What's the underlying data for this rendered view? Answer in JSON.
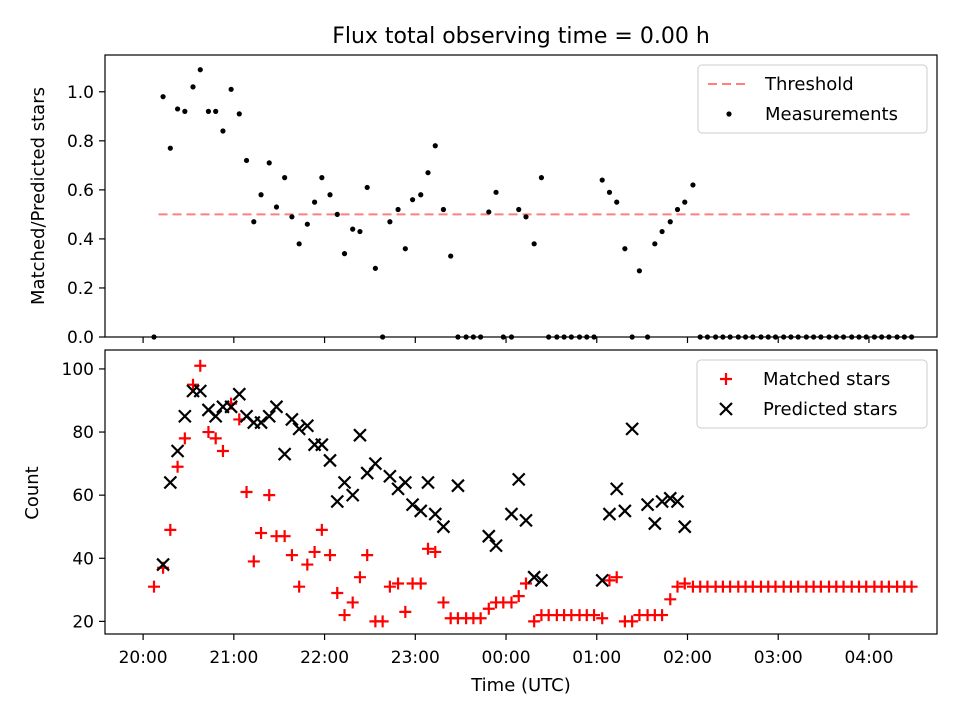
{
  "figure": {
    "title": "Flux total observing time = 0.00 h",
    "xlabel": "Time (UTC)",
    "xticks": [
      "20:00",
      "21:00",
      "22:00",
      "23:00",
      "00:00",
      "01:00",
      "02:00",
      "03:00",
      "04:00"
    ]
  },
  "chart_data": [
    {
      "type": "scatter",
      "ylabel": "Matched/Predicted stars",
      "ylim": [
        0,
        1.15
      ],
      "yticks": [
        "0.0",
        "0.2",
        "0.4",
        "0.6",
        "0.8",
        "1.0"
      ],
      "x_axis": "hours since 20:00 UTC",
      "xlim": [
        -0.42,
        8.75
      ],
      "grid": false,
      "legend_placement": "upper right",
      "colors": {
        "threshold": "#ff7f7f",
        "measurements": "#000000"
      },
      "threshold": {
        "name": "Threshold",
        "value": 0.5,
        "x_range": [
          0.17,
          8.45
        ]
      },
      "series": [
        {
          "name": "Measurements",
          "x": [
            0.12,
            0.22,
            0.3,
            0.38,
            0.46,
            0.55,
            0.63,
            0.72,
            0.8,
            0.88,
            0.97,
            1.06,
            1.14,
            1.22,
            1.3,
            1.39,
            1.47,
            1.56,
            1.64,
            1.72,
            1.81,
            1.89,
            1.97,
            2.06,
            2.14,
            2.22,
            2.31,
            2.39,
            2.47,
            2.56,
            2.64,
            2.72,
            2.81,
            2.89,
            2.97,
            3.06,
            3.14,
            3.22,
            3.31,
            3.39,
            3.47,
            3.56,
            3.64,
            3.72,
            3.81,
            3.89,
            3.97,
            4.06,
            4.14,
            4.22,
            4.31,
            4.39,
            4.47,
            4.56,
            4.64,
            4.72,
            4.81,
            4.89,
            4.97,
            5.06,
            5.14,
            5.22,
            5.31,
            5.39,
            5.47,
            5.56,
            5.64,
            5.72,
            5.81,
            5.89,
            5.97,
            6.06,
            6.14,
            6.22,
            6.31,
            6.39,
            6.47,
            6.56,
            6.64,
            6.72,
            6.81,
            6.89,
            6.97,
            7.06,
            7.14,
            7.22,
            7.31,
            7.39,
            7.47,
            7.56,
            7.64,
            7.72,
            7.81,
            7.89,
            7.97,
            8.06,
            8.14,
            8.22,
            8.31,
            8.39,
            8.47
          ],
          "y": [
            0.0,
            0.98,
            0.77,
            0.93,
            0.92,
            1.02,
            1.09,
            0.92,
            0.92,
            0.84,
            1.01,
            0.91,
            0.72,
            0.47,
            0.58,
            0.71,
            0.53,
            0.65,
            0.49,
            0.38,
            0.46,
            0.55,
            0.65,
            0.58,
            0.5,
            0.34,
            0.44,
            0.43,
            0.61,
            0.28,
            0.0,
            0.47,
            0.52,
            0.36,
            0.56,
            0.58,
            0.67,
            0.78,
            0.52,
            0.33,
            0.0,
            0.0,
            0.0,
            0.0,
            0.51,
            0.59,
            0.0,
            0.0,
            0.52,
            0.49,
            0.38,
            0.65,
            0.0,
            0.0,
            0.0,
            0.0,
            0.0,
            0.0,
            0.0,
            0.64,
            0.59,
            0.55,
            0.36,
            0.0,
            0.27,
            0.0,
            0.38,
            0.43,
            0.47,
            0.52,
            0.55,
            0.62,
            0.0,
            0.0,
            0.0,
            0.0,
            0.0,
            0.0,
            0.0,
            0.0,
            0.0,
            0.0,
            0.0,
            0.0,
            0.0,
            0.0,
            0.0,
            0.0,
            0.0,
            0.0,
            0.0,
            0.0,
            0.0,
            0.0,
            0.0,
            0.0,
            0.0,
            0.0,
            0.0,
            0.0,
            0.0
          ]
        }
      ]
    },
    {
      "type": "scatter",
      "ylabel": "Count",
      "ylim": [
        16,
        106
      ],
      "yticks": [
        "20",
        "40",
        "60",
        "80",
        "100"
      ],
      "x_axis": "hours since 20:00 UTC",
      "xlim": [
        -0.42,
        8.75
      ],
      "grid": false,
      "legend_placement": "upper right",
      "colors": {
        "matched": "#ff0000",
        "predicted": "#000000"
      },
      "series": [
        {
          "name": "Matched stars",
          "marker": "+",
          "x": [
            0.12,
            0.22,
            0.3,
            0.38,
            0.46,
            0.55,
            0.63,
            0.72,
            0.8,
            0.88,
            0.97,
            1.06,
            1.14,
            1.22,
            1.3,
            1.39,
            1.47,
            1.56,
            1.64,
            1.72,
            1.81,
            1.89,
            1.97,
            2.06,
            2.14,
            2.22,
            2.31,
            2.39,
            2.47,
            2.56,
            2.64,
            2.72,
            2.81,
            2.89,
            2.97,
            3.06,
            3.14,
            3.22,
            3.31,
            3.39,
            3.47,
            3.56,
            3.64,
            3.72,
            3.81,
            3.89,
            3.97,
            4.06,
            4.14,
            4.22,
            4.31,
            4.39,
            4.47,
            4.56,
            4.64,
            4.72,
            4.81,
            4.89,
            4.97,
            5.06,
            5.14,
            5.22,
            5.31,
            5.39,
            5.47,
            5.56,
            5.64,
            5.72,
            5.81,
            5.89,
            5.97,
            6.06,
            6.14,
            6.22,
            6.31,
            6.39,
            6.47,
            6.56,
            6.64,
            6.72,
            6.81,
            6.89,
            6.97,
            7.06,
            7.14,
            7.22,
            7.31,
            7.39,
            7.47,
            7.56,
            7.64,
            7.72,
            7.81,
            7.89,
            7.97,
            8.06,
            8.14,
            8.22,
            8.31,
            8.39,
            8.47
          ],
          "y": [
            31,
            37,
            49,
            69,
            78,
            95,
            101,
            80,
            78,
            74,
            89,
            84,
            61,
            39,
            48,
            60,
            47,
            47,
            41,
            31,
            38,
            42,
            49,
            41,
            29,
            22,
            26,
            34,
            41,
            20,
            20,
            31,
            32,
            23,
            32,
            32,
            43,
            42,
            26,
            21,
            21,
            21,
            21,
            21,
            24,
            26,
            26,
            26,
            28,
            32,
            20,
            22,
            22,
            22,
            22,
            22,
            22,
            22,
            22,
            21,
            33,
            34,
            20,
            20,
            22,
            22,
            22,
            22,
            27,
            31,
            32,
            31,
            31,
            31,
            31,
            31,
            31,
            31,
            31,
            31,
            31,
            31,
            31,
            31,
            31,
            31,
            31,
            31,
            31,
            31,
            31,
            31,
            31,
            31,
            31,
            31,
            31,
            31,
            31,
            31,
            31
          ]
        },
        {
          "name": "Predicted stars",
          "marker": "x",
          "x": [
            0.22,
            0.3,
            0.38,
            0.46,
            0.55,
            0.63,
            0.72,
            0.8,
            0.88,
            0.97,
            1.06,
            1.14,
            1.22,
            1.3,
            1.39,
            1.47,
            1.56,
            1.64,
            1.72,
            1.81,
            1.89,
            1.97,
            2.06,
            2.14,
            2.22,
            2.31,
            2.39,
            2.47,
            2.56,
            2.72,
            2.81,
            2.89,
            2.97,
            3.06,
            3.14,
            3.22,
            3.31,
            3.47,
            3.81,
            3.89,
            4.06,
            4.14,
            4.22,
            4.31,
            4.39,
            5.06,
            5.14,
            5.22,
            5.31,
            5.39,
            5.56,
            5.64,
            5.72,
            5.81,
            5.89,
            5.97
          ],
          "y": [
            38,
            64,
            74,
            85,
            93,
            93,
            87,
            85,
            88,
            88,
            92,
            85,
            83,
            83,
            85,
            88,
            73,
            84,
            81,
            82,
            76,
            76,
            71,
            58,
            64,
            60,
            79,
            67,
            70,
            66,
            62,
            64,
            57,
            55,
            64,
            54,
            50,
            63,
            47,
            44,
            54,
            65,
            52,
            34,
            33,
            33,
            54,
            62,
            55,
            81,
            57,
            51,
            58,
            59,
            58,
            50
          ]
        }
      ]
    }
  ]
}
